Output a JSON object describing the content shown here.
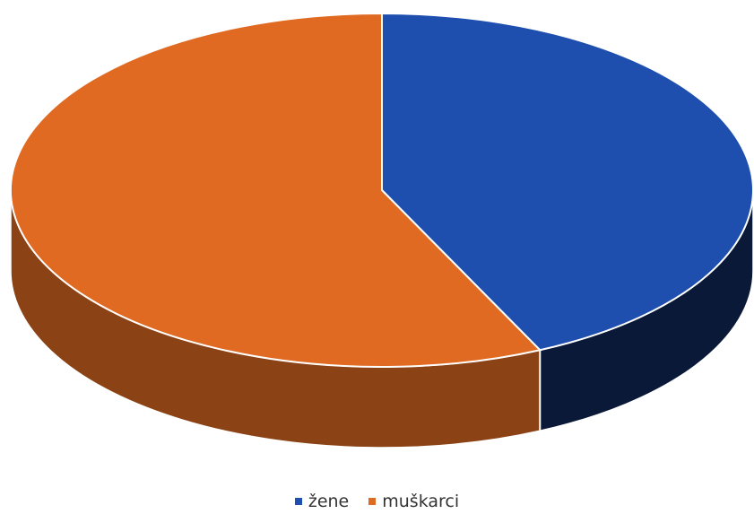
{
  "chart_data": {
    "type": "pie",
    "style": "3d",
    "title": "",
    "slices": [
      {
        "label": "žene",
        "value": 43,
        "color": "#1f4fae"
      },
      {
        "label": "muškarci",
        "value": 57,
        "color": "#e06a22"
      }
    ],
    "legend_position": "bottom",
    "data_labels": "none"
  }
}
